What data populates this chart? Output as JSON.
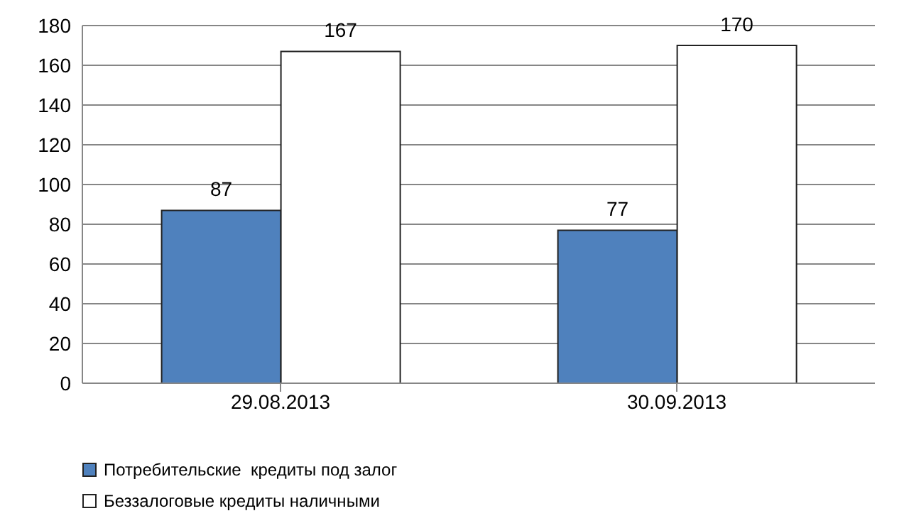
{
  "chart_data": {
    "type": "bar",
    "categories": [
      "29.08.2013",
      "30.09.2013"
    ],
    "series": [
      {
        "name": "Потребительские  кредиты под залог",
        "color": "#4f81bd",
        "values": [
          87,
          77
        ]
      },
      {
        "name": "Беззалоговые кредиты наличными",
        "color": "#ffffff",
        "values": [
          167,
          170
        ]
      }
    ],
    "ylim": [
      0,
      180
    ],
    "yticks": [
      0,
      20,
      40,
      60,
      80,
      100,
      120,
      140,
      160,
      180
    ],
    "grid": "y",
    "legend": "bottom left",
    "data_labels": true
  }
}
